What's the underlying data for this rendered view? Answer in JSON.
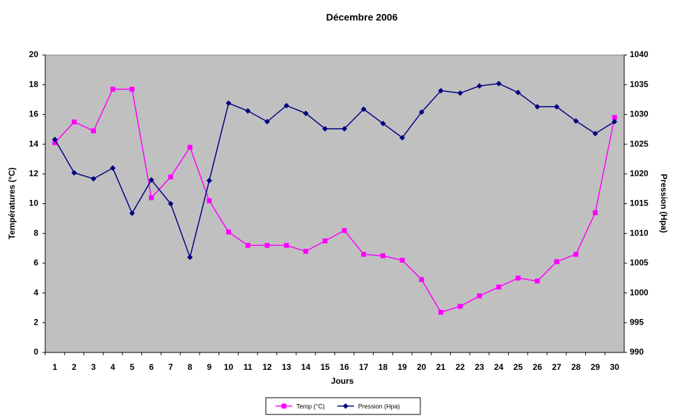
{
  "chart_data": {
    "type": "line",
    "title": "Décembre 2006",
    "x_label": "Jours",
    "y_label": "Températures (°C)",
    "y2_label": "Pression (Hpa)",
    "categories": [
      "1",
      "2",
      "3",
      "4",
      "5",
      "6",
      "7",
      "8",
      "9",
      "10",
      "11",
      "12",
      "13",
      "14",
      "15",
      "16",
      "17",
      "18",
      "19",
      "20",
      "21",
      "22",
      "23",
      "24",
      "25",
      "26",
      "27",
      "28",
      "29",
      "30"
    ],
    "series": [
      {
        "name": "Temp (°C)",
        "color": "#ff00ff",
        "marker": "square",
        "values": [
          14.1,
          15.5,
          14.9,
          17.7,
          17.7,
          10.4,
          11.8,
          13.8,
          10.2,
          8.1,
          7.2,
          7.2,
          7.2,
          6.8,
          7.5,
          8.2,
          6.6,
          6.5,
          6.2,
          4.9,
          2.7,
          3.1,
          3.8,
          4.4,
          5.0,
          4.8,
          6.1,
          6.6,
          9.4,
          15.8
        ]
      },
      {
        "name": "Pression (Hpa)",
        "color": "#000080",
        "marker": "diamond",
        "axis": "y2",
        "values": [
          1025.8,
          1020.2,
          1019.2,
          1021,
          1013.4,
          1019,
          1015,
          1006,
          1018.9,
          1031.9,
          1030.6,
          1028.8,
          1031.5,
          1030.2,
          1027.6,
          1027.6,
          1030.9,
          1028.5,
          1026.1,
          1030.4,
          1034,
          1033.6,
          1034.8,
          1035.2,
          1033.7,
          1031.3,
          1031.3,
          1028.9,
          1026.8,
          1028.8
        ]
      }
    ],
    "ylim": [
      0,
      20
    ],
    "yticks": [
      0,
      2,
      4,
      6,
      8,
      10,
      12,
      14,
      16,
      18,
      20
    ],
    "y2lim": [
      990,
      1040
    ],
    "y2ticks": [
      990,
      995,
      1000,
      1005,
      1010,
      1015,
      1020,
      1025,
      1030,
      1035,
      1040
    ],
    "plot_background": "#c0c0c0",
    "legend": "bottom"
  }
}
